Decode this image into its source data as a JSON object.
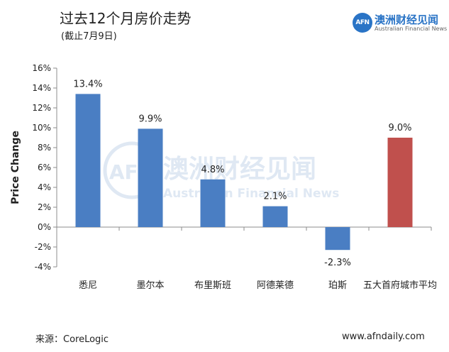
{
  "header": {
    "title": "过去12个月房价走势",
    "subtitle": "(截止7月9日)"
  },
  "logo": {
    "badge": "AFN",
    "name_cn": "澳洲财经见闻",
    "name_en": "Australian Financial News"
  },
  "watermark": {
    "badge": "AFN",
    "name_cn": "澳洲财经见闻",
    "name_en": "Australian Financial News"
  },
  "footer": {
    "source": "来源：CoreLogic",
    "website": "www.afndaily.com"
  },
  "colors": {
    "bar_default": "#4a7ec3",
    "bar_highlight": "#c0504d",
    "axis": "#8c8c8c",
    "watermark": "#dfe8f3"
  },
  "chart_data": {
    "type": "bar",
    "title": "过去12个月房价走势",
    "subtitle": "(截止7月9日)",
    "xlabel": "",
    "ylabel": "Price Change",
    "ylim": [
      -4,
      16
    ],
    "yticks": [
      -4,
      -2,
      0,
      2,
      4,
      6,
      8,
      10,
      12,
      14,
      16
    ],
    "ytick_labels": [
      "-4%",
      "-2%",
      "0%",
      "2%",
      "4%",
      "6%",
      "8%",
      "10%",
      "12%",
      "14%",
      "16%"
    ],
    "categories": [
      "悉尼",
      "墨尔本",
      "布里斯班",
      "阿德莱德",
      "珀斯",
      "五大首府城市平均"
    ],
    "values": [
      13.4,
      9.9,
      4.8,
      2.1,
      -2.3,
      9.0
    ],
    "data_labels": [
      "13.4%",
      "9.9%",
      "4.8%",
      "2.1%",
      "-2.3%",
      "9.0%"
    ],
    "highlight_index": 5,
    "grid": false,
    "legend": "none"
  }
}
